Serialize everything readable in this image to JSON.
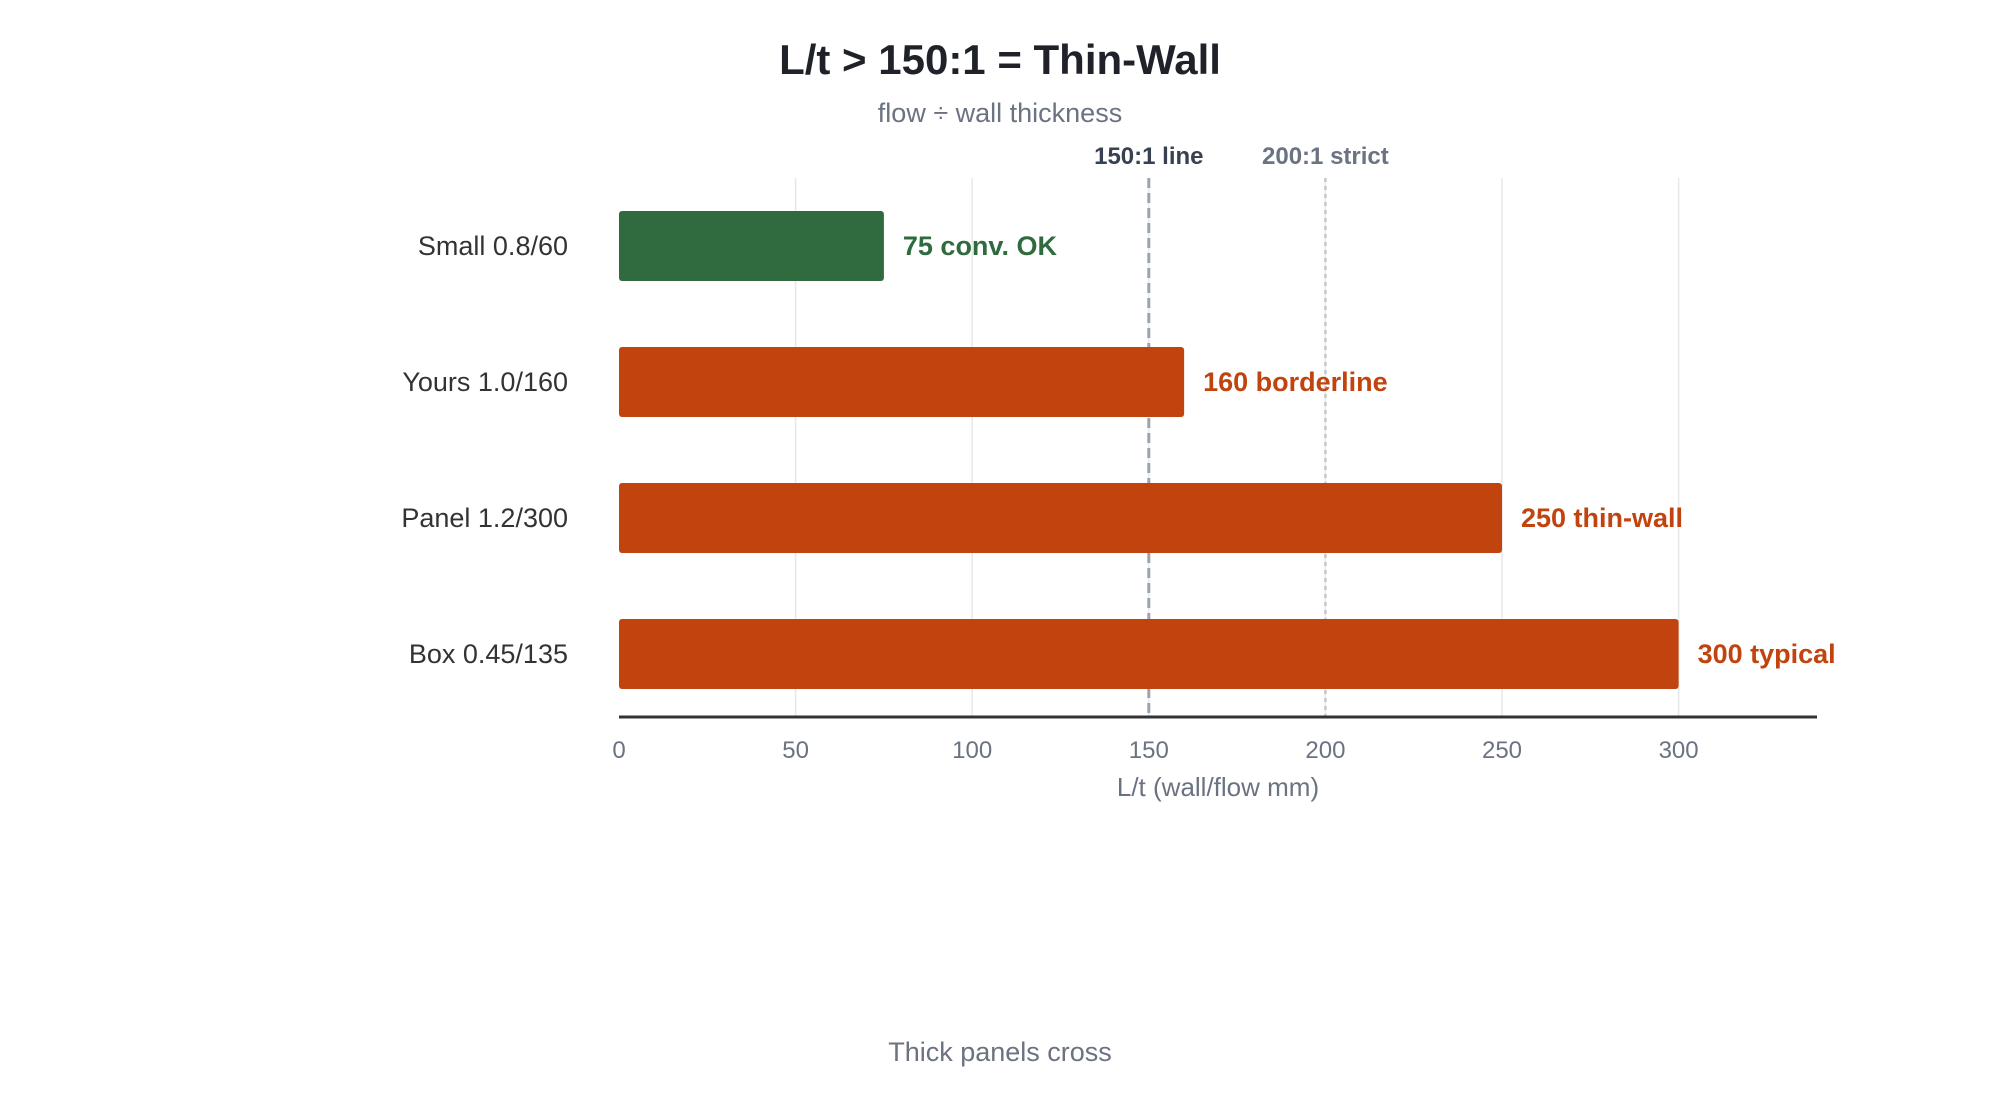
{
  "chart_data": {
    "type": "bar",
    "orientation": "horizontal",
    "title": "L/t > 150:1 = Thin-Wall",
    "subtitle": "flow ÷ wall thickness",
    "xlabel": "L/t (wall/flow mm)",
    "footer": "Thick panels cross",
    "xlim": [
      0,
      340
    ],
    "xticks": [
      0,
      50,
      100,
      150,
      200,
      250,
      300
    ],
    "grid": true,
    "categories": [
      "Small 0.8/60",
      "Yours 1.0/160",
      "Panel 1.2/300",
      "Box 0.45/135"
    ],
    "values": [
      75,
      160,
      250,
      300
    ],
    "bar_labels": [
      "75 conv. OK",
      "160 borderline",
      "250 thin-wall",
      "300 typical"
    ],
    "bar_colors": [
      "#2f6b3e",
      "#c1440e",
      "#c1440e",
      "#c1440e"
    ],
    "reference_lines": [
      {
        "value": 150,
        "label": "150:1 line",
        "color": "#9ca3af",
        "label_color": "#374151",
        "style": "dashed"
      },
      {
        "value": 200,
        "label": "200:1 strict",
        "color": "#c4c8ce",
        "label_color": "#6b7280",
        "style": "dotted"
      }
    ],
    "axis_color": "#333333",
    "grid_color": "#e5e7eb"
  }
}
